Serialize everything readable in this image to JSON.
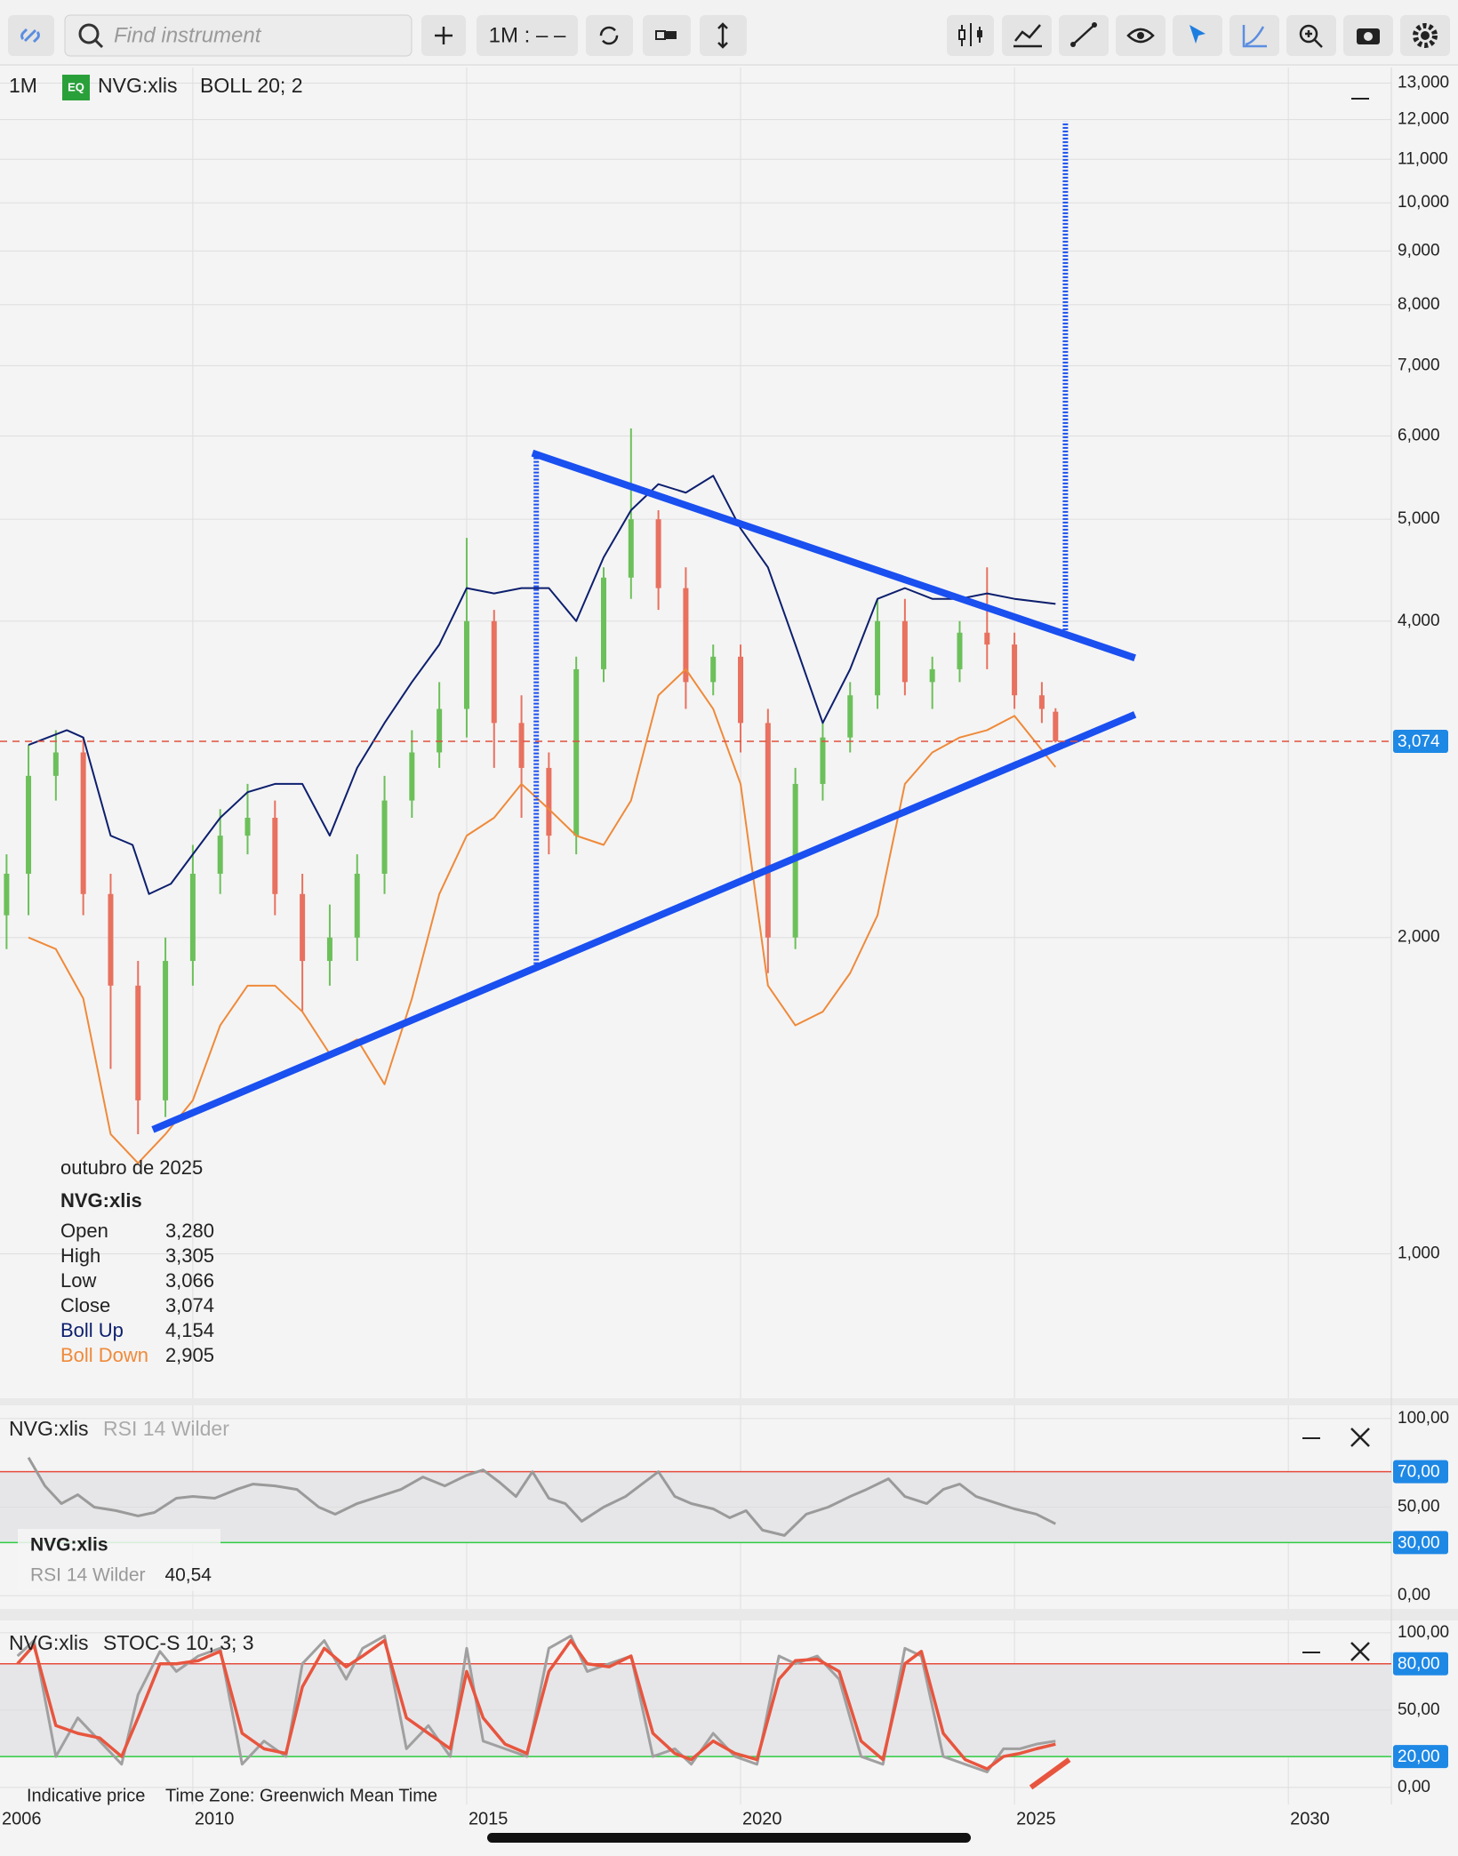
{
  "toolbar": {
    "search_placeholder": "Find instrument",
    "interval_button": "1M : – –"
  },
  "main_legend": {
    "interval": "1M",
    "badge": "EQ",
    "instrument": "NVG:xlis",
    "indicator": "BOLL 20; 2"
  },
  "info_box": {
    "date": "outubro de 2025",
    "instrument": "NVG:xlis",
    "rows": [
      [
        "Open",
        "3,280"
      ],
      [
        "High",
        "3,305"
      ],
      [
        "Low",
        "3,066"
      ],
      [
        "Close",
        "3,074"
      ]
    ],
    "boll_values": [
      "4,154",
      "2,905"
    ]
  },
  "rsi_info": {
    "instrument": "NVG:xlis",
    "indicator": "RSI 14 Wilder",
    "value": "40,54"
  },
  "footer": {
    "note": "Indicative price",
    "timezone": "Time Zone: Greenwich Mean Time"
  },
  "chart_data": [
    {
      "type": "candlestick",
      "log_scale": true,
      "xlim": [
        2006.48,
        2031.88
      ],
      "xticks": [
        2006,
        2010,
        2015,
        2020,
        2025,
        2030
      ],
      "ylim": [
        729,
        13450
      ],
      "yticks": [
        {
          "value": 1000,
          "label": "1,000"
        },
        {
          "value": 2000,
          "label": "2,000"
        },
        {
          "value": 4000,
          "label": "4,000"
        },
        {
          "value": 5000,
          "label": "5,000"
        },
        {
          "value": 6000,
          "label": "6,000"
        },
        {
          "value": 7000,
          "label": "7,000"
        },
        {
          "value": 8000,
          "label": "8,000"
        },
        {
          "value": 9000,
          "label": "9,000"
        },
        {
          "value": 10000,
          "label": "10,000"
        },
        {
          "value": 11000,
          "label": "11,000"
        },
        {
          "value": 12000,
          "label": "12,000"
        },
        {
          "value": 13000,
          "label": "13,000"
        }
      ],
      "up_color": "#6cc05a",
      "down_color": "#e8715f",
      "x": [
        2006.6,
        2007.0,
        2007.5,
        2008.0,
        2008.5,
        2009.0,
        2009.5,
        2010.0,
        2010.5,
        2011.0,
        2011.5,
        2012.0,
        2012.5,
        2013.0,
        2013.5,
        2014.0,
        2014.5,
        2015.0,
        2015.5,
        2016.0,
        2016.5,
        2017.0,
        2017.5,
        2018.0,
        2018.5,
        2019.0,
        2019.5,
        2020.0,
        2020.5,
        2021.0,
        2021.5,
        2022.0,
        2022.5,
        2023.0,
        2023.5,
        2024.0,
        2024.5,
        2025.0,
        2025.5,
        2025.75
      ],
      "open": [
        2100,
        2300,
        2850,
        3000,
        2200,
        1800,
        1400,
        1900,
        2300,
        2500,
        2600,
        2200,
        1900,
        2000,
        2300,
        2700,
        3000,
        3300,
        4000,
        3200,
        2900,
        2500,
        3600,
        4400,
        5000,
        4300,
        3500,
        3700,
        3200,
        2000,
        2800,
        3100,
        3400,
        4000,
        3500,
        3600,
        3900,
        3800,
        3400,
        3280
      ],
      "high": [
        2400,
        3050,
        3150,
        3100,
        2300,
        1900,
        2000,
        2450,
        2650,
        2800,
        2700,
        2300,
        2150,
        2400,
        2850,
        3150,
        3500,
        4800,
        4100,
        3400,
        3000,
        3700,
        4500,
        6100,
        5100,
        4500,
        3800,
        3800,
        3300,
        2900,
        3200,
        3500,
        4200,
        4200,
        3700,
        4000,
        4500,
        3900,
        3500,
        3305
      ],
      "low": [
        1950,
        2100,
        2700,
        2100,
        1500,
        1300,
        1350,
        1800,
        2200,
        2400,
        2100,
        1700,
        1800,
        1900,
        2200,
        2600,
        2900,
        3100,
        2900,
        2600,
        2400,
        2400,
        3500,
        4200,
        4100,
        3300,
        3400,
        3000,
        1850,
        1950,
        2700,
        3000,
        3300,
        3400,
        3300,
        3500,
        3600,
        3300,
        3200,
        3066
      ],
      "close": [
        2300,
        2850,
        3000,
        2200,
        1800,
        1400,
        1900,
        2300,
        2500,
        2600,
        2200,
        1900,
        2000,
        2300,
        2700,
        3000,
        3300,
        4000,
        3200,
        2900,
        2500,
        3600,
        4400,
        5000,
        4300,
        3500,
        3700,
        3200,
        2000,
        2800,
        3100,
        3400,
        4000,
        3500,
        3600,
        3900,
        3800,
        3400,
        3300,
        3074
      ],
      "bollinger": [
        {
          "name": "Boll Up",
          "color": "#0d1f6e",
          "x": [
            2007.0,
            2007.7,
            2008.0,
            2008.5,
            2008.9,
            2009.2,
            2009.6,
            2010.0,
            2010.5,
            2011.0,
            2011.5,
            2012.0,
            2012.5,
            2013.0,
            2013.5,
            2014.0,
            2014.5,
            2015.0,
            2015.5,
            2016.0,
            2016.5,
            2017.0,
            2017.5,
            2018.0,
            2018.5,
            2019.0,
            2019.5,
            2020.0,
            2020.5,
            2021.0,
            2021.5,
            2022.0,
            2022.5,
            2023.0,
            2023.5,
            2024.0,
            2024.5,
            2025.0,
            2025.75
          ],
          "values": [
            3050,
            3150,
            3100,
            2500,
            2450,
            2200,
            2250,
            2400,
            2600,
            2750,
            2800,
            2800,
            2500,
            2900,
            3200,
            3500,
            3800,
            4300,
            4250,
            4300,
            4300,
            4000,
            4600,
            5100,
            5400,
            5300,
            5500,
            4900,
            4500,
            3800,
            3200,
            3600,
            4200,
            4300,
            4200,
            4200,
            4250,
            4200,
            4154
          ]
        },
        {
          "name": "Boll Down",
          "color": "#ef8a3a",
          "x": [
            2007.0,
            2007.5,
            2008.0,
            2008.5,
            2009.0,
            2009.5,
            2010.0,
            2010.5,
            2011.0,
            2011.5,
            2012.0,
            2012.5,
            2013.0,
            2013.5,
            2014.0,
            2014.5,
            2015.0,
            2015.5,
            2016.0,
            2016.5,
            2017.0,
            2017.5,
            2018.0,
            2018.5,
            2019.0,
            2019.5,
            2020.0,
            2020.5,
            2021.0,
            2021.5,
            2022.0,
            2022.5,
            2023.0,
            2023.5,
            2024.0,
            2024.5,
            2025.0,
            2025.75
          ],
          "values": [
            2000,
            1950,
            1750,
            1300,
            1220,
            1300,
            1400,
            1650,
            1800,
            1800,
            1700,
            1550,
            1600,
            1450,
            1750,
            2200,
            2500,
            2600,
            2800,
            2650,
            2500,
            2450,
            2700,
            3400,
            3600,
            3300,
            2800,
            1800,
            1650,
            1700,
            1850,
            2100,
            2800,
            3000,
            3100,
            3150,
            3250,
            2905
          ]
        }
      ],
      "last_price": {
        "value": 3074,
        "label": "3,074"
      },
      "trend_color": "#1a4ff0",
      "trendlines": [
        {
          "x": [
            2016.2,
            2027.2
          ],
          "values": [
            5780,
            3690
          ]
        },
        {
          "x": [
            2009.27,
            2027.2
          ],
          "values": [
            1313,
            3260
          ]
        }
      ],
      "projections": [
        {
          "x": 2016.27,
          "values": [
            1887,
            5780
          ]
        },
        {
          "x": 2025.93,
          "values": [
            3922,
            11950
          ]
        }
      ]
    },
    {
      "type": "line",
      "title": "NVG:xlis",
      "subtitle": "RSI 14 Wilder",
      "ylim": [
        -7.5,
        107.5
      ],
      "yticks": [
        {
          "value": 0,
          "label": "0,00"
        },
        {
          "value": 50,
          "label": "50,00"
        },
        {
          "value": 100,
          "label": "100,00"
        }
      ],
      "levels": [
        {
          "value": 70,
          "label": "70,00",
          "color": "#e74c3c"
        },
        {
          "value": 30,
          "label": "30,00",
          "color": "#2ecc40"
        }
      ],
      "series": [
        {
          "color": "#9a9a9a",
          "x": [
            2007.0,
            2007.3,
            2007.6,
            2007.9,
            2008.2,
            2008.6,
            2009.0,
            2009.3,
            2009.7,
            2010.0,
            2010.4,
            2010.8,
            2011.1,
            2011.5,
            2011.9,
            2012.3,
            2012.6,
            2013.0,
            2013.4,
            2013.8,
            2014.2,
            2014.6,
            2015.0,
            2015.3,
            2015.6,
            2015.9,
            2016.2,
            2016.5,
            2016.8,
            2017.1,
            2017.5,
            2017.9,
            2018.2,
            2018.5,
            2018.8,
            2019.1,
            2019.5,
            2019.8,
            2020.1,
            2020.4,
            2020.8,
            2021.2,
            2021.6,
            2022.0,
            2022.3,
            2022.7,
            2023.0,
            2023.4,
            2023.7,
            2024.0,
            2024.3,
            2024.7,
            2025.0,
            2025.4,
            2025.75
          ],
          "values": [
            78,
            62,
            52,
            57,
            50,
            48,
            45,
            47,
            55,
            56,
            55,
            60,
            63,
            62,
            60,
            50,
            46,
            52,
            56,
            60,
            67,
            62,
            68,
            71,
            64,
            56,
            70,
            55,
            52,
            42,
            50,
            56,
            63,
            70,
            56,
            52,
            49,
            44,
            48,
            37,
            34,
            46,
            50,
            56,
            60,
            66,
            56,
            52,
            60,
            63,
            56,
            52,
            49,
            46,
            40.54
          ]
        }
      ]
    },
    {
      "type": "line",
      "title": "NVG:xlis",
      "subtitle": "STOC-S 10; 3; 3",
      "ylim": [
        -11,
        108
      ],
      "yticks": [
        {
          "value": 0,
          "label": "0,00"
        },
        {
          "value": 50,
          "label": "50,00"
        },
        {
          "value": 100,
          "label": "100,00"
        }
      ],
      "levels": [
        {
          "value": 80,
          "label": "80,00",
          "color": "#e74c3c"
        },
        {
          "value": 20,
          "label": "20,00",
          "color": "#2ecc40"
        }
      ],
      "series": [
        {
          "color": "#a0a0a0",
          "x": [
            2006.8,
            2007.1,
            2007.5,
            2007.9,
            2008.3,
            2008.7,
            2009.0,
            2009.4,
            2009.7,
            2010.1,
            2010.5,
            2010.9,
            2011.3,
            2011.7,
            2012.0,
            2012.4,
            2012.8,
            2013.1,
            2013.5,
            2013.9,
            2014.3,
            2014.7,
            2015.0,
            2015.3,
            2015.7,
            2016.1,
            2016.5,
            2016.9,
            2017.2,
            2017.6,
            2018.0,
            2018.4,
            2018.8,
            2019.1,
            2019.5,
            2019.9,
            2020.3,
            2020.7,
            2021.0,
            2021.4,
            2021.8,
            2022.2,
            2022.6,
            2023.0,
            2023.3,
            2023.7,
            2024.1,
            2024.5,
            2024.8,
            2025.1,
            2025.4,
            2025.75
          ],
          "values": [
            85,
            95,
            20,
            45,
            30,
            15,
            60,
            88,
            75,
            85,
            90,
            15,
            30,
            20,
            80,
            95,
            70,
            90,
            98,
            25,
            40,
            20,
            90,
            30,
            25,
            20,
            90,
            98,
            75,
            80,
            85,
            20,
            25,
            15,
            35,
            20,
            15,
            85,
            80,
            85,
            70,
            20,
            15,
            90,
            85,
            20,
            15,
            10,
            25,
            25,
            28,
            30
          ]
        },
        {
          "color": "#e8553e",
          "x": [
            2006.8,
            2007.1,
            2007.5,
            2007.9,
            2008.3,
            2008.7,
            2009.0,
            2009.4,
            2009.7,
            2010.1,
            2010.5,
            2010.9,
            2011.3,
            2011.7,
            2012.0,
            2012.4,
            2012.8,
            2013.1,
            2013.5,
            2013.9,
            2014.3,
            2014.7,
            2015.0,
            2015.3,
            2015.7,
            2016.1,
            2016.5,
            2016.9,
            2017.2,
            2017.6,
            2018.0,
            2018.4,
            2018.8,
            2019.1,
            2019.5,
            2019.9,
            2020.3,
            2020.7,
            2021.0,
            2021.4,
            2021.8,
            2022.2,
            2022.6,
            2023.0,
            2023.3,
            2023.7,
            2024.1,
            2024.5,
            2024.8,
            2025.1,
            2025.4,
            2025.75
          ],
          "values": [
            80,
            92,
            40,
            35,
            32,
            20,
            45,
            80,
            80,
            82,
            88,
            35,
            25,
            22,
            65,
            90,
            78,
            85,
            95,
            45,
            35,
            25,
            75,
            45,
            28,
            22,
            75,
            95,
            80,
            78,
            85,
            35,
            22,
            18,
            30,
            22,
            18,
            70,
            82,
            83,
            75,
            30,
            18,
            80,
            88,
            35,
            18,
            12,
            20,
            22,
            25,
            28
          ]
        }
      ],
      "trendline": {
        "color": "#e8553e",
        "x": [
          2025.3,
          2026.0
        ],
        "values": [
          0,
          18
        ]
      }
    }
  ]
}
